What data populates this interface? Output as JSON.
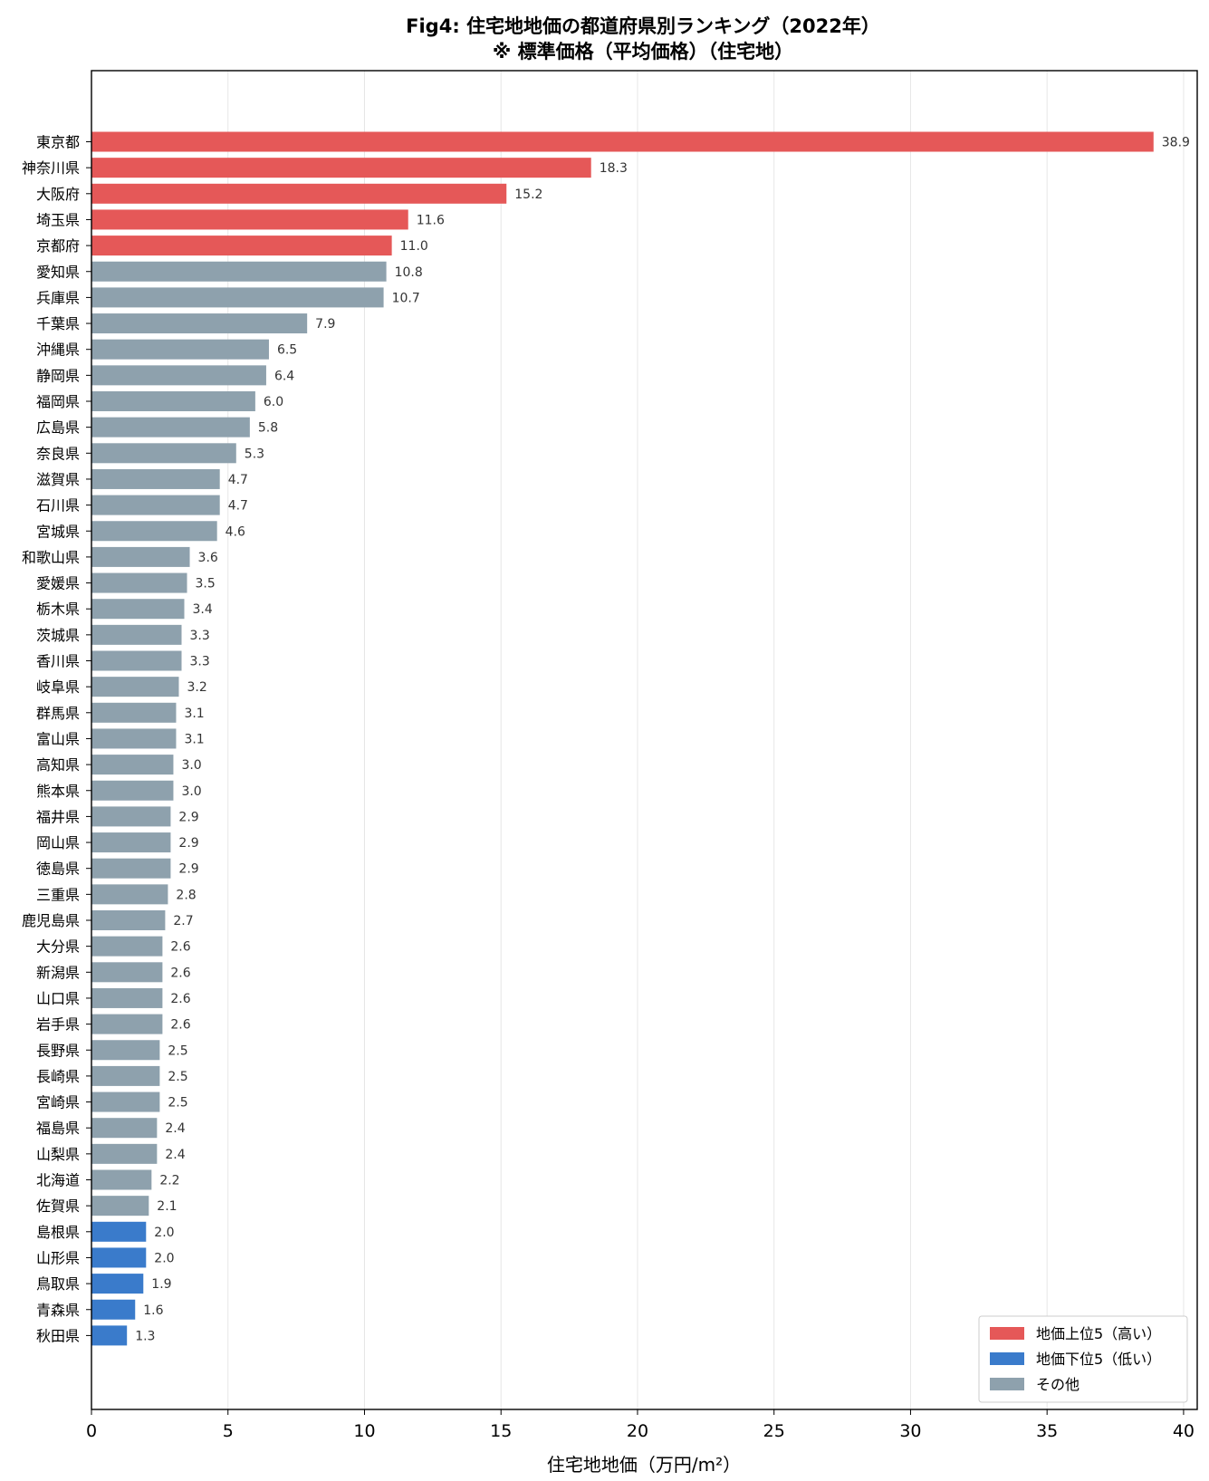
{
  "chart_data": {
    "type": "bar",
    "orientation": "horizontal",
    "title_line1": "Fig4: 住宅地地価の都道府県別ランキング（2022年）",
    "title_line2": "※ 標準価格（平均価格）（住宅地）",
    "xlabel": "住宅地地価（万円/m²）",
    "ylabel": "",
    "xlim": [
      0,
      40.5
    ],
    "xticks": [
      0,
      5,
      10,
      15,
      20,
      25,
      30,
      35,
      40
    ],
    "grid": "x",
    "legend_position": "lower-right",
    "colors": {
      "top": "#e55858",
      "bottom": "#3a7bcb",
      "other": "#8ea1ad"
    },
    "legend": [
      {
        "label": "地価上位5（高い）",
        "group": "top"
      },
      {
        "label": "地価下位5（低い）",
        "group": "bottom"
      },
      {
        "label": "その他",
        "group": "other"
      }
    ],
    "categories": [
      "東京都",
      "神奈川県",
      "大阪府",
      "埼玉県",
      "京都府",
      "愛知県",
      "兵庫県",
      "千葉県",
      "沖縄県",
      "静岡県",
      "福岡県",
      "広島県",
      "奈良県",
      "滋賀県",
      "石川県",
      "宮城県",
      "和歌山県",
      "愛媛県",
      "栃木県",
      "茨城県",
      "香川県",
      "岐阜県",
      "群馬県",
      "富山県",
      "高知県",
      "熊本県",
      "福井県",
      "岡山県",
      "徳島県",
      "三重県",
      "鹿児島県",
      "大分県",
      "新潟県",
      "山口県",
      "岩手県",
      "長野県",
      "長崎県",
      "宮崎県",
      "福島県",
      "山梨県",
      "北海道",
      "佐賀県",
      "島根県",
      "山形県",
      "鳥取県",
      "青森県",
      "秋田県"
    ],
    "values": [
      38.9,
      18.3,
      15.2,
      11.6,
      11.0,
      10.8,
      10.7,
      7.9,
      6.5,
      6.4,
      6.0,
      5.8,
      5.3,
      4.7,
      4.7,
      4.6,
      3.6,
      3.5,
      3.4,
      3.3,
      3.3,
      3.2,
      3.1,
      3.1,
      3.0,
      3.0,
      2.9,
      2.9,
      2.9,
      2.8,
      2.7,
      2.6,
      2.6,
      2.6,
      2.6,
      2.5,
      2.5,
      2.5,
      2.4,
      2.4,
      2.2,
      2.1,
      2.0,
      2.0,
      1.9,
      1.6,
      1.3
    ],
    "value_labels": [
      "38.9",
      "18.3",
      "15.2",
      "11.6",
      "11.0",
      "10.8",
      "10.7",
      "7.9",
      "6.5",
      "6.4",
      "6.0",
      "5.8",
      "5.3",
      "4.7",
      "4.7",
      "4.6",
      "3.6",
      "3.5",
      "3.4",
      "3.3",
      "3.3",
      "3.2",
      "3.1",
      "3.1",
      "3.0",
      "3.0",
      "2.9",
      "2.9",
      "2.9",
      "2.8",
      "2.7",
      "2.6",
      "2.6",
      "2.6",
      "2.6",
      "2.5",
      "2.5",
      "2.5",
      "2.4",
      "2.4",
      "2.2",
      "2.1",
      "2.0",
      "2.0",
      "1.9",
      "1.6",
      "1.3"
    ],
    "groups": [
      "top",
      "top",
      "top",
      "top",
      "top",
      "other",
      "other",
      "other",
      "other",
      "other",
      "other",
      "other",
      "other",
      "other",
      "other",
      "other",
      "other",
      "other",
      "other",
      "other",
      "other",
      "other",
      "other",
      "other",
      "other",
      "other",
      "other",
      "other",
      "other",
      "other",
      "other",
      "other",
      "other",
      "other",
      "other",
      "other",
      "other",
      "other",
      "other",
      "other",
      "other",
      "other",
      "bottom",
      "bottom",
      "bottom",
      "bottom",
      "bottom"
    ]
  }
}
